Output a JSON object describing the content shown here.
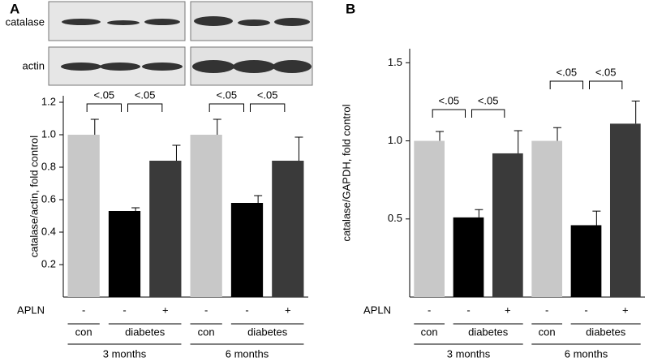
{
  "chart_data": [
    {
      "type": "bar",
      "panel": "A",
      "ylabel": "catalase/actin, fold control",
      "blot_labels": [
        "catalase",
        "actin"
      ],
      "ylim": [
        0,
        1.24
      ],
      "yticks": [
        0.2,
        0.4,
        0.6,
        0.8,
        {
          "value": 1,
          "label": "1.0"
        },
        1.2
      ],
      "row_label": "APLN",
      "categories": [
        "-",
        "-",
        "+",
        "-",
        "-",
        "+"
      ],
      "values": [
        1.0,
        0.53,
        0.84,
        1.0,
        0.58,
        0.84
      ],
      "errors": [
        0.095,
        0.02,
        0.095,
        0.095,
        0.045,
        0.145
      ],
      "colors": [
        "#c8c8c8",
        "#000000",
        "#3a3a3a",
        "#c8c8c8",
        "#000000",
        "#3a3a3a"
      ],
      "significance": [
        "<.05",
        "<.05",
        "<.05",
        "<.05"
      ],
      "groups": [
        "con",
        "diabetes",
        "con",
        "diabetes"
      ],
      "periods": [
        "3 months",
        "6 months"
      ]
    },
    {
      "type": "bar",
      "panel": "B",
      "ylabel": "catalase/GAPDH, fold control",
      "ylim": [
        0,
        1.59
      ],
      "yticks": [
        0.5,
        {
          "value": 1,
          "label": "1.0"
        },
        1.5
      ],
      "row_label": "APLN",
      "categories": [
        "-",
        "-",
        "+",
        "-",
        "-",
        "+"
      ],
      "values": [
        1.0,
        0.51,
        0.92,
        1.0,
        0.46,
        1.11
      ],
      "errors": [
        0.06,
        0.05,
        0.145,
        0.085,
        0.09,
        0.145
      ],
      "colors": [
        "#c8c8c8",
        "#000000",
        "#3a3a3a",
        "#c8c8c8",
        "#000000",
        "#3a3a3a"
      ],
      "significance": [
        "<.05",
        "<.05",
        "<.05",
        "<.05"
      ],
      "groups": [
        "con",
        "diabetes",
        "con",
        "diabetes"
      ],
      "periods": [
        "3 months",
        "6 months"
      ]
    }
  ]
}
